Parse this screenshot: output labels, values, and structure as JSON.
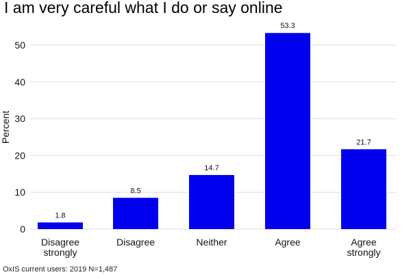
{
  "chart_data": {
    "type": "bar",
    "title": "I am very careful what I do or say online",
    "ylabel": "Percent",
    "xlabel": "",
    "categories": [
      "Disagree strongly",
      "Disagree",
      "Neither",
      "Agree",
      "Agree strongly"
    ],
    "category_lines": [
      [
        "Disagree",
        "strongly"
      ],
      [
        "Disagree"
      ],
      [
        "Neither"
      ],
      [
        "Agree"
      ],
      [
        "Agree",
        "strongly"
      ]
    ],
    "values": [
      1.8,
      8.5,
      14.7,
      53.3,
      21.7
    ],
    "value_labels": [
      "1.8",
      "8.5",
      "14.7",
      "53.3",
      "21.7"
    ],
    "yticks": [
      0,
      10,
      20,
      30,
      40,
      50
    ],
    "ylim": [
      0,
      55
    ],
    "grid": true,
    "bar_color": "#0000ee",
    "grid_color": "#dddddd",
    "caption": "OxIS current users: 2019 N=1,487"
  }
}
